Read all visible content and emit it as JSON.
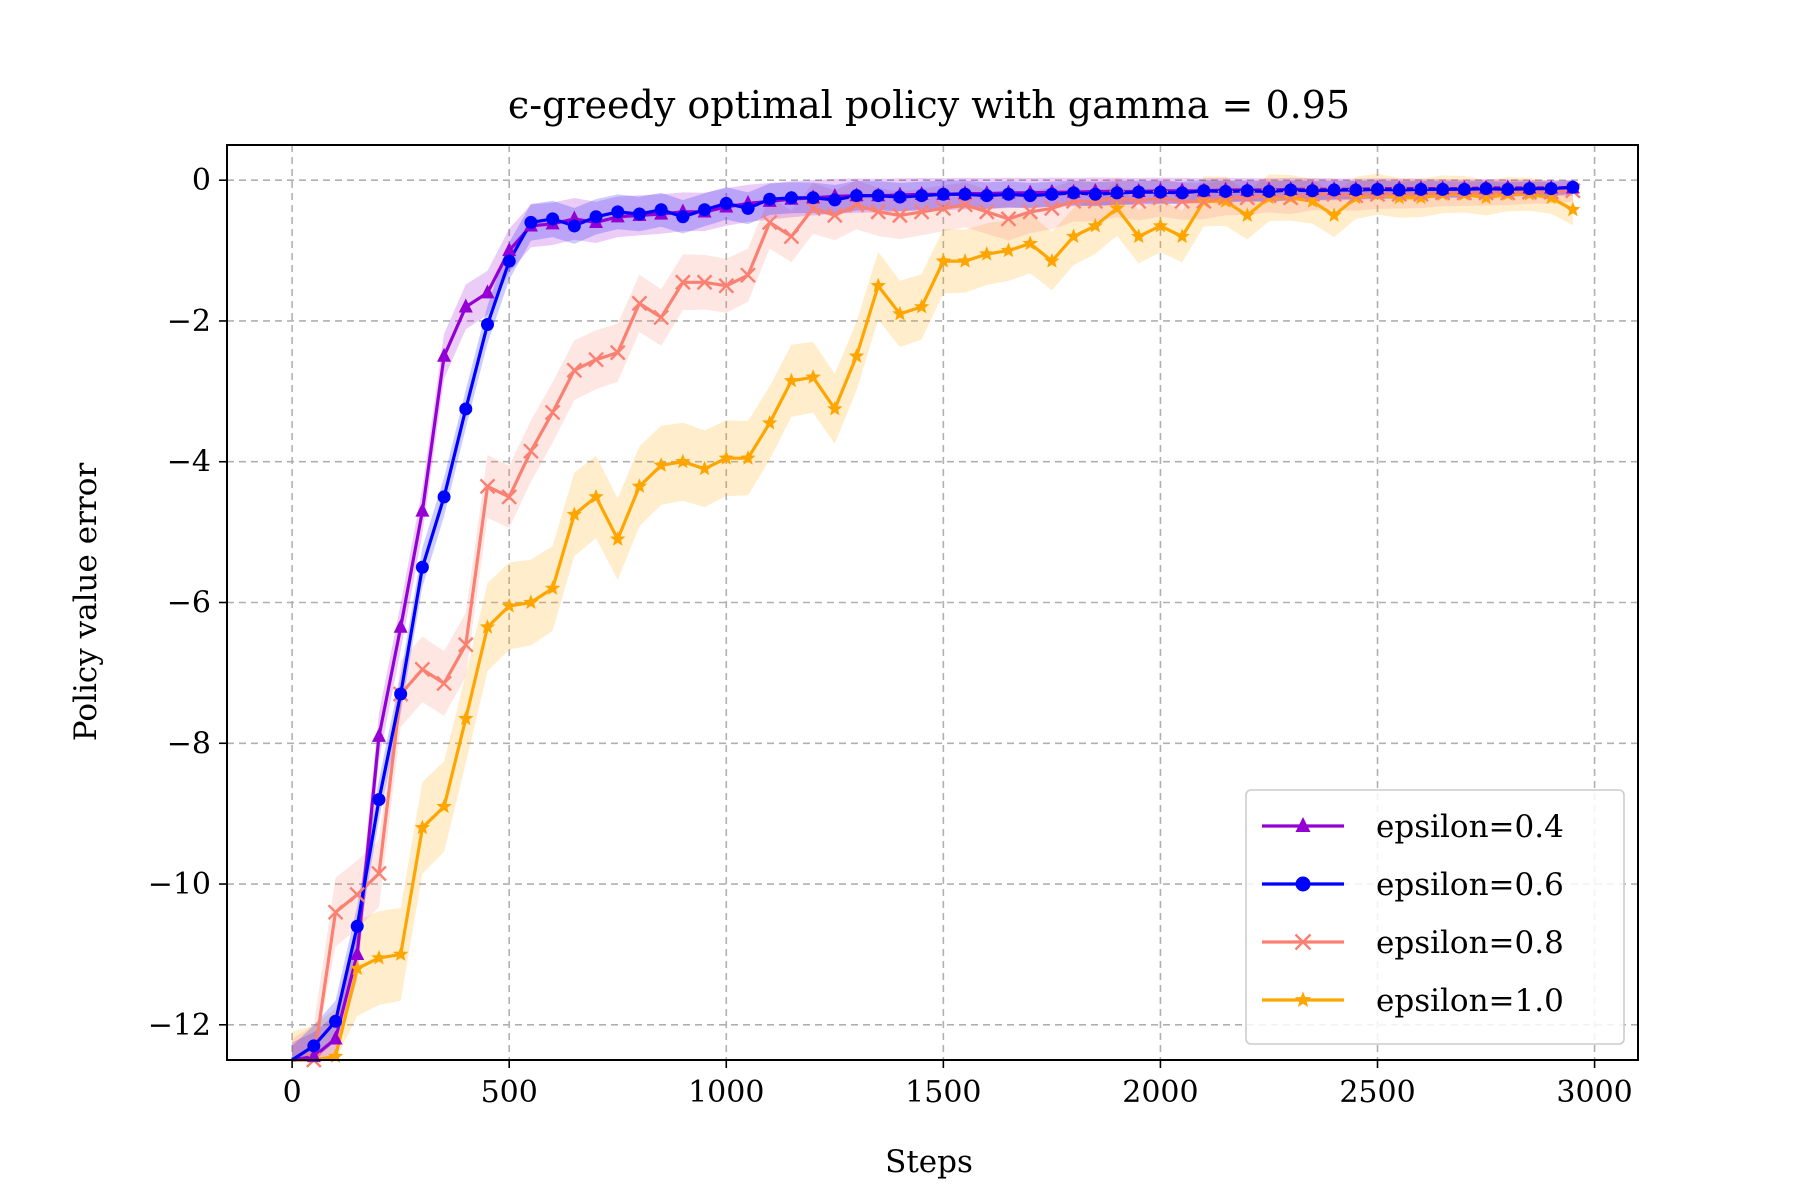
{
  "chart_data": {
    "type": "line",
    "title": "ϵ-greedy optimal policy with gamma = 0.95",
    "xlabel": "Steps",
    "ylabel": "Policy value error",
    "xlim": [
      -150,
      3100
    ],
    "ylim": [
      -12.5,
      0.5
    ],
    "xticks": [
      0,
      500,
      1000,
      1500,
      2000,
      2500,
      3000
    ],
    "yticks": [
      0,
      -2,
      -4,
      -6,
      -8,
      -10,
      -12
    ],
    "xtick_labels": [
      "0",
      "500",
      "1000",
      "1500",
      "2000",
      "2500",
      "3000"
    ],
    "ytick_labels": [
      "0",
      "−2",
      "−4",
      "−6",
      "−8",
      "−10",
      "−12"
    ],
    "grid": true,
    "legend_position": "lower-right",
    "x": [
      0,
      50,
      100,
      150,
      200,
      250,
      300,
      350,
      400,
      450,
      500,
      550,
      600,
      650,
      700,
      750,
      800,
      850,
      900,
      950,
      1000,
      1050,
      1100,
      1150,
      1200,
      1250,
      1300,
      1350,
      1400,
      1450,
      1500,
      1550,
      1600,
      1650,
      1700,
      1750,
      1800,
      1850,
      1900,
      1950,
      2000,
      2050,
      2100,
      2150,
      2200,
      2250,
      2300,
      2350,
      2400,
      2450,
      2500,
      2550,
      2600,
      2650,
      2700,
      2750,
      2800,
      2850,
      2900,
      2950
    ],
    "series": [
      {
        "name": "epsilon=0.4",
        "color": "#9400D3",
        "marker": "triangle",
        "band": 0.35,
        "values": [
          -12.6,
          -12.45,
          -12.2,
          -11.0,
          -7.9,
          -6.35,
          -4.7,
          -2.5,
          -1.8,
          -1.6,
          -1.0,
          -0.65,
          -0.62,
          -0.55,
          -0.6,
          -0.52,
          -0.5,
          -0.48,
          -0.45,
          -0.45,
          -0.38,
          -0.33,
          -0.3,
          -0.27,
          -0.25,
          -0.23,
          -0.22,
          -0.22,
          -0.21,
          -0.2,
          -0.2,
          -0.19,
          -0.19,
          -0.18,
          -0.18,
          -0.17,
          -0.17,
          -0.16,
          -0.16,
          -0.16,
          -0.15,
          -0.15,
          -0.15,
          -0.14,
          -0.14,
          -0.14,
          -0.13,
          -0.13,
          -0.13,
          -0.13,
          -0.12,
          -0.12,
          -0.12,
          -0.12,
          -0.12,
          -0.11,
          -0.11,
          -0.11,
          -0.11,
          -0.11
        ]
      },
      {
        "name": "epsilon=0.6",
        "color": "#0000FF",
        "marker": "circle",
        "band": 0.3,
        "values": [
          -12.6,
          -12.3,
          -11.95,
          -10.6,
          -8.8,
          -7.3,
          -5.5,
          -4.5,
          -3.25,
          -2.05,
          -1.15,
          -0.6,
          -0.55,
          -0.65,
          -0.52,
          -0.45,
          -0.48,
          -0.42,
          -0.52,
          -0.42,
          -0.33,
          -0.4,
          -0.27,
          -0.25,
          -0.25,
          -0.28,
          -0.22,
          -0.22,
          -0.24,
          -0.22,
          -0.2,
          -0.2,
          -0.22,
          -0.2,
          -0.22,
          -0.2,
          -0.18,
          -0.2,
          -0.18,
          -0.17,
          -0.17,
          -0.18,
          -0.15,
          -0.16,
          -0.15,
          -0.16,
          -0.14,
          -0.15,
          -0.14,
          -0.14,
          -0.13,
          -0.14,
          -0.13,
          -0.13,
          -0.13,
          -0.12,
          -0.13,
          -0.12,
          -0.12,
          -0.1
        ]
      },
      {
        "name": "epsilon=0.8",
        "color": "#FA8072",
        "marker": "x",
        "band": 0.5,
        "values": [
          -12.7,
          -12.5,
          -10.4,
          -10.15,
          -9.85,
          -7.3,
          -6.95,
          -7.15,
          -6.6,
          -4.35,
          -4.5,
          -3.85,
          -3.3,
          -2.7,
          -2.55,
          -2.45,
          -1.75,
          -1.95,
          -1.45,
          -1.45,
          -1.5,
          -1.35,
          -0.6,
          -0.8,
          -0.4,
          -0.5,
          -0.35,
          -0.45,
          -0.5,
          -0.45,
          -0.4,
          -0.35,
          -0.45,
          -0.55,
          -0.45,
          -0.4,
          -0.3,
          -0.3,
          -0.25,
          -0.3,
          -0.25,
          -0.3,
          -0.3,
          -0.25,
          -0.25,
          -0.22,
          -0.25,
          -0.2,
          -0.2,
          -0.22,
          -0.2,
          -0.2,
          -0.2,
          -0.18,
          -0.18,
          -0.18,
          -0.18,
          -0.17,
          -0.17,
          -0.15
        ]
      },
      {
        "name": "epsilon=1.0",
        "color": "#FFA500",
        "marker": "star",
        "band": 0.7,
        "values": [
          -12.8,
          -12.7,
          -12.45,
          -11.2,
          -11.05,
          -11.0,
          -9.2,
          -8.9,
          -7.65,
          -6.35,
          -6.05,
          -6.0,
          -5.8,
          -4.75,
          -4.5,
          -5.1,
          -4.35,
          -4.05,
          -4.0,
          -4.1,
          -3.95,
          -3.95,
          -3.45,
          -2.85,
          -2.8,
          -3.25,
          -2.5,
          -1.5,
          -1.9,
          -1.8,
          -1.15,
          -1.15,
          -1.05,
          -1.0,
          -0.9,
          -1.15,
          -0.8,
          -0.65,
          -0.4,
          -0.8,
          -0.65,
          -0.8,
          -0.3,
          -0.3,
          -0.5,
          -0.25,
          -0.25,
          -0.3,
          -0.5,
          -0.25,
          -0.2,
          -0.25,
          -0.25,
          -0.2,
          -0.2,
          -0.25,
          -0.2,
          -0.2,
          -0.25,
          -0.42
        ]
      }
    ]
  }
}
